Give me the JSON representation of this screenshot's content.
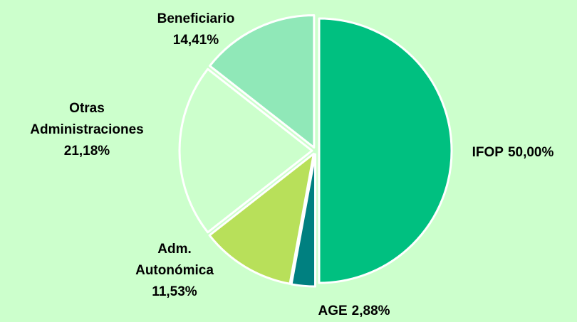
{
  "chart_data": {
    "type": "pie",
    "categories": [
      "IFOP",
      "AGE",
      "Adm. Autonómica",
      "Otras Administraciones",
      "Beneficiario"
    ],
    "values": [
      50.0,
      2.88,
      11.53,
      21.18,
      14.41
    ],
    "value_labels": [
      "50,00%",
      "2,88%",
      "11,53%",
      "21,18%",
      "14,41%"
    ],
    "colors": [
      "#00c080",
      "#008080",
      "#b8e05a",
      "#ccffcc",
      "#90e8b8"
    ],
    "background": "#ccffcc"
  }
}
